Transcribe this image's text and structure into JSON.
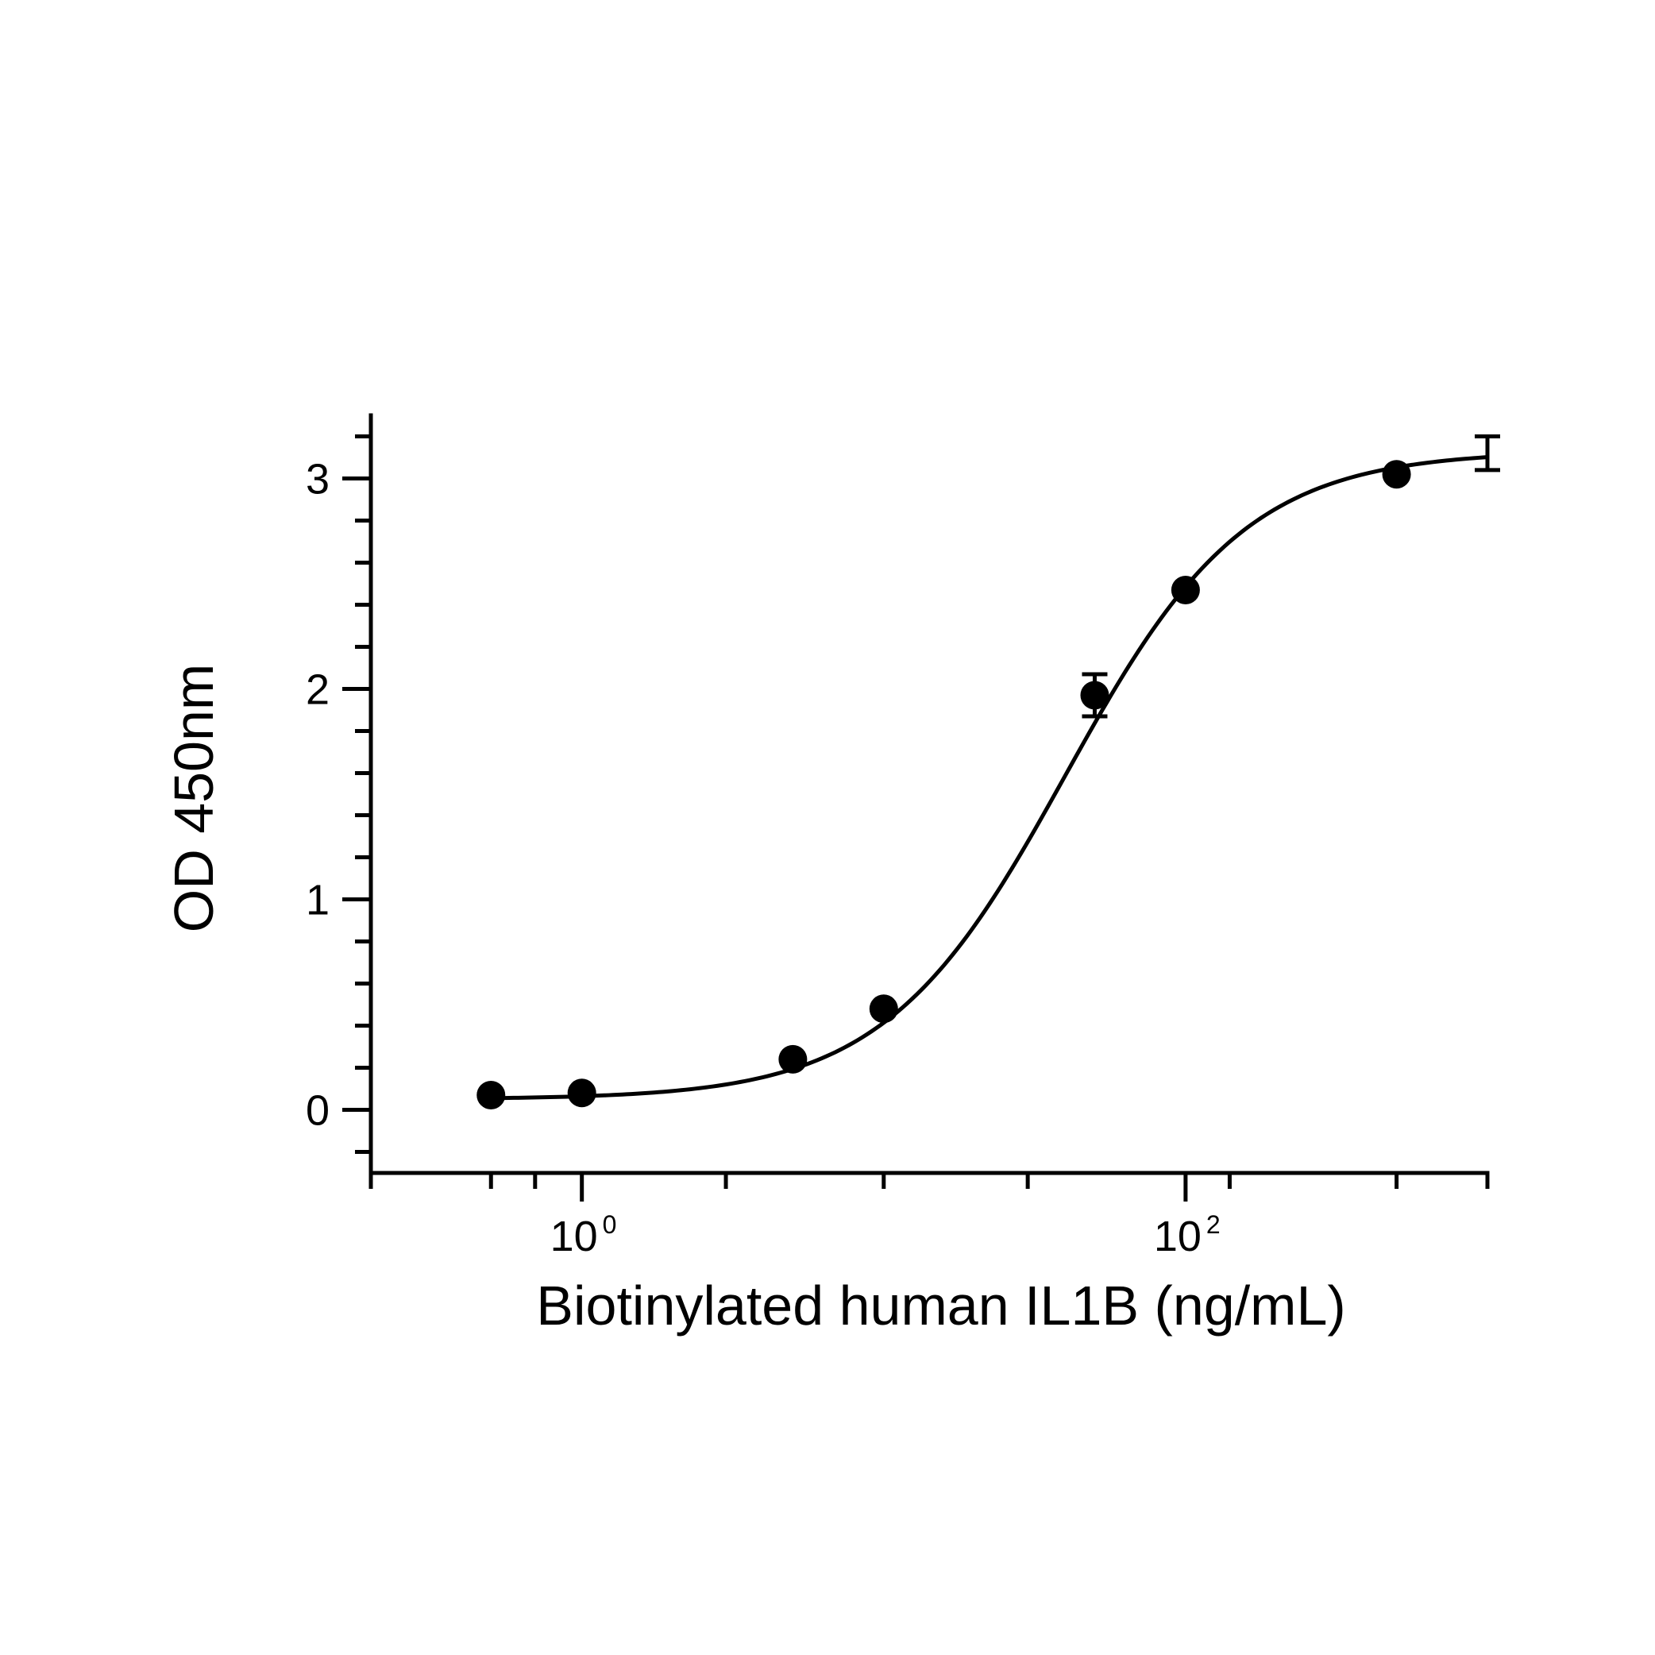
{
  "chart_data": {
    "type": "scatter",
    "title": "",
    "xlabel": "Biotinylated human IL1B (ng/mL)",
    "ylabel": "OD 450nm",
    "x_scale": "log",
    "xlim": [
      0.2,
      1000
    ],
    "ylim": [
      -0.3,
      3.3
    ],
    "grid": false,
    "legend": "none",
    "x_major_ticks": [
      {
        "value": 1,
        "base": "10",
        "exp": "0"
      },
      {
        "value": 100,
        "base": "10",
        "exp": "2"
      }
    ],
    "x_minor_ticks": [
      0.2,
      0.5,
      0.7,
      3,
      10,
      30,
      140,
      500,
      1000
    ],
    "y_ticks": [
      0,
      1,
      2,
      3
    ],
    "y_tick_labels": [
      "0",
      "1",
      "2",
      "3"
    ],
    "y_minor_step": 0.2,
    "series": [
      {
        "points": [
          {
            "x": 0.5,
            "y": 0.07,
            "err": 0
          },
          {
            "x": 1.0,
            "y": 0.08,
            "err": 0
          },
          {
            "x": 5.0,
            "y": 0.24,
            "err": 0
          },
          {
            "x": 10.0,
            "y": 0.48,
            "err": 0
          },
          {
            "x": 50.0,
            "y": 1.97,
            "err": 0.1
          },
          {
            "x": 100.0,
            "y": 2.47,
            "err": 0
          },
          {
            "x": 500.0,
            "y": 3.02,
            "err": 0
          },
          {
            "x": 1000.0,
            "y": 3.12,
            "err": 0.08
          }
        ],
        "fit": {
          "model": "4PL",
          "bottom": 0.05,
          "top": 3.13,
          "ec50": 40,
          "hill": 1.45
        }
      }
    ],
    "colors": {
      "line": "#000000",
      "marker": "#000000",
      "background": "#ffffff"
    }
  }
}
